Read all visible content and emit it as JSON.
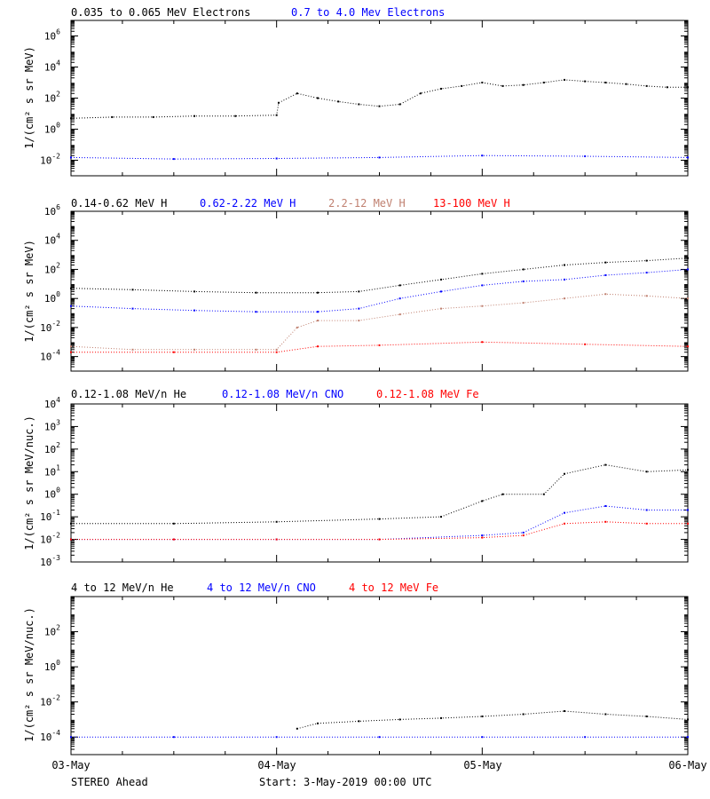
{
  "chart_data": [
    {
      "type": "scatter",
      "panel": "electrons",
      "ylabel": "1/(cm² s sr MeV)",
      "yscale": "log",
      "ylim": [
        0.001,
        10000000
      ],
      "yticks": [
        {
          "value": 0.01,
          "base": "10",
          "exp": "-2"
        },
        {
          "value": 1,
          "base": "10",
          "exp": "0"
        },
        {
          "value": 100,
          "base": "10",
          "exp": "2"
        },
        {
          "value": 10000,
          "base": "10",
          "exp": "4"
        },
        {
          "value": 1000000,
          "base": "10",
          "exp": "6"
        }
      ],
      "xlim": [
        0,
        3
      ],
      "series": [
        {
          "name": "0.035 to 0.065 MeV Electrons",
          "color": "#000000",
          "x": [
            0,
            0.2,
            0.4,
            0.6,
            0.8,
            1.0,
            1.01,
            1.1,
            1.2,
            1.3,
            1.4,
            1.5,
            1.6,
            1.7,
            1.8,
            1.9,
            2.0,
            2.1,
            2.2,
            2.3,
            2.4,
            2.5,
            2.6,
            2.7,
            2.8,
            2.9,
            3.0
          ],
          "y": [
            5,
            6,
            6,
            7,
            7,
            8,
            50,
            200,
            100,
            60,
            40,
            30,
            40,
            200,
            400,
            600,
            1000,
            600,
            700,
            1000,
            1500,
            1200,
            1000,
            800,
            600,
            500,
            500
          ]
        },
        {
          "name": "0.7 to 4.0 Mev Electrons",
          "color": "#0000ff",
          "x": [
            0,
            0.5,
            1.0,
            1.5,
            2.0,
            2.5,
            3.0
          ],
          "y": [
            0.015,
            0.012,
            0.013,
            0.015,
            0.02,
            0.018,
            0.015
          ]
        }
      ]
    },
    {
      "type": "scatter",
      "panel": "protons",
      "ylabel": "1/(cm² s sr MeV)",
      "yscale": "log",
      "ylim": [
        1e-05,
        1000000
      ],
      "yticks": [
        {
          "value": 0.0001,
          "base": "10",
          "exp": "-4"
        },
        {
          "value": 0.01,
          "base": "10",
          "exp": "-2"
        },
        {
          "value": 1,
          "base": "10",
          "exp": "0"
        },
        {
          "value": 100,
          "base": "10",
          "exp": "2"
        },
        {
          "value": 10000,
          "base": "10",
          "exp": "4"
        },
        {
          "value": 1000000,
          "base": "10",
          "exp": "6"
        }
      ],
      "xlim": [
        0,
        3
      ],
      "series": [
        {
          "name": "0.14-0.62 MeV H",
          "color": "#000000",
          "x": [
            0,
            0.3,
            0.6,
            0.9,
            1.2,
            1.4,
            1.6,
            1.8,
            2.0,
            2.2,
            2.4,
            2.6,
            2.8,
            3.0
          ],
          "y": [
            5,
            4,
            3,
            2.5,
            2.5,
            3,
            8,
            20,
            50,
            100,
            200,
            300,
            400,
            600
          ]
        },
        {
          "name": "0.62-2.22 MeV H",
          "color": "#0000ff",
          "x": [
            0,
            0.3,
            0.6,
            0.9,
            1.2,
            1.4,
            1.6,
            1.8,
            2.0,
            2.2,
            2.4,
            2.6,
            2.8,
            3.0
          ],
          "y": [
            0.3,
            0.2,
            0.15,
            0.12,
            0.12,
            0.2,
            1,
            3,
            8,
            15,
            20,
            40,
            60,
            100
          ]
        },
        {
          "name": "2.2-12 MeV H",
          "color": "#c08070",
          "x": [
            0,
            0.3,
            0.6,
            0.9,
            1.0,
            1.1,
            1.2,
            1.4,
            1.6,
            1.8,
            2.0,
            2.2,
            2.4,
            2.6,
            2.8,
            3.0
          ],
          "y": [
            0.0005,
            0.0003,
            0.0003,
            0.0003,
            0.0003,
            0.01,
            0.03,
            0.03,
            0.08,
            0.2,
            0.3,
            0.5,
            1,
            2,
            1.5,
            1
          ]
        },
        {
          "name": "13-100 MeV H",
          "color": "#ff0000",
          "x": [
            0,
            0.5,
            1.0,
            1.2,
            1.5,
            2.0,
            2.5,
            3.0
          ],
          "y": [
            0.0002,
            0.0002,
            0.0002,
            0.0005,
            0.0006,
            0.001,
            0.0007,
            0.0005
          ]
        }
      ]
    },
    {
      "type": "scatter",
      "panel": "low-energy-ions",
      "ylabel": "1/(cm² s sr MeV/nuc.)",
      "yscale": "log",
      "ylim": [
        0.001,
        10000
      ],
      "yticks": [
        {
          "value": 0.001,
          "base": "10",
          "exp": "-3"
        },
        {
          "value": 0.01,
          "base": "10",
          "exp": "-2"
        },
        {
          "value": 0.1,
          "base": "10",
          "exp": "-1"
        },
        {
          "value": 1,
          "base": "10",
          "exp": "0"
        },
        {
          "value": 10,
          "base": "10",
          "exp": "1"
        },
        {
          "value": 100,
          "base": "10",
          "exp": "2"
        },
        {
          "value": 1000,
          "base": "10",
          "exp": "3"
        },
        {
          "value": 10000,
          "base": "10",
          "exp": "4"
        }
      ],
      "xlim": [
        0,
        3
      ],
      "series": [
        {
          "name": "0.12-1.08 MeV/n He",
          "color": "#000000",
          "x": [
            0,
            0.5,
            1.0,
            1.5,
            1.8,
            2.0,
            2.1,
            2.3,
            2.4,
            2.6,
            2.8,
            3.0
          ],
          "y": [
            0.05,
            0.05,
            0.06,
            0.08,
            0.1,
            0.5,
            1,
            1,
            8,
            20,
            10,
            12
          ]
        },
        {
          "name": "0.12-1.08 MeV/n CNO",
          "color": "#0000ff",
          "x": [
            0,
            0.5,
            1.0,
            1.5,
            2.0,
            2.2,
            2.4,
            2.6,
            2.8,
            3.0
          ],
          "y": [
            0.01,
            0.01,
            0.01,
            0.01,
            0.015,
            0.02,
            0.15,
            0.3,
            0.2,
            0.2
          ]
        },
        {
          "name": "0.12-1.08 MeV Fe",
          "color": "#ff0000",
          "x": [
            0,
            0.5,
            1.0,
            1.5,
            2.0,
            2.2,
            2.4,
            2.6,
            2.8,
            3.0
          ],
          "y": [
            0.01,
            0.01,
            0.01,
            0.01,
            0.012,
            0.015,
            0.05,
            0.06,
            0.05,
            0.05
          ]
        }
      ]
    },
    {
      "type": "scatter",
      "panel": "high-energy-ions",
      "ylabel": "1/(cm² s sr MeV/nuc.)",
      "yscale": "log",
      "ylim": [
        1e-05,
        10000
      ],
      "yticks": [
        {
          "value": 0.0001,
          "base": "10",
          "exp": "-4"
        },
        {
          "value": 0.01,
          "base": "10",
          "exp": "-2"
        },
        {
          "value": 1,
          "base": "10",
          "exp": "0"
        },
        {
          "value": 100,
          "base": "10",
          "exp": "2"
        }
      ],
      "xlim": [
        0,
        3
      ],
      "series": [
        {
          "name": "4 to 12 MeV/n He",
          "color": "#000000",
          "x": [
            1.1,
            1.2,
            1.4,
            1.6,
            1.8,
            2.0,
            2.2,
            2.4,
            2.6,
            2.8,
            3.0
          ],
          "y": [
            0.0003,
            0.0006,
            0.0008,
            0.001,
            0.0012,
            0.0015,
            0.002,
            0.003,
            0.002,
            0.0015,
            0.001
          ]
        },
        {
          "name": "4 to 12 MeV/n CNO",
          "color": "#0000ff",
          "x": [
            0,
            0.5,
            1.0,
            1.5,
            2.0,
            2.5,
            3.0
          ],
          "y": [
            0.0001,
            0.0001,
            0.0001,
            0.0001,
            0.0001,
            0.0001,
            0.0001
          ]
        },
        {
          "name": "4 to 12 MeV Fe",
          "color": "#ff0000",
          "x": [],
          "y": []
        }
      ]
    }
  ],
  "x_axis": {
    "tick_labels": [
      "03-May",
      "04-May",
      "05-May",
      "06-May"
    ],
    "tick_values": [
      0,
      1,
      2,
      3
    ]
  },
  "footer": {
    "spacecraft": "STEREO Ahead",
    "start_label": "Start:",
    "start_value": "3-May-2019 00:00 UTC"
  }
}
